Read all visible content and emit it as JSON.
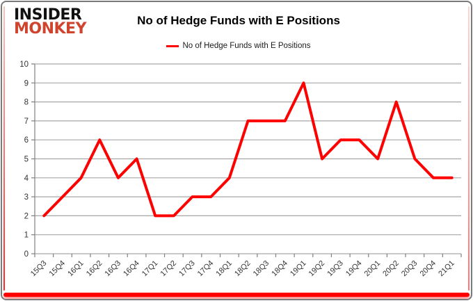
{
  "brand": {
    "line1": "INSIDER",
    "line2": "MONKEY",
    "accent_color": "#d0442e"
  },
  "chart_data": {
    "type": "line",
    "title": "No of Hedge Funds with E Positions",
    "legend": "No of Hedge Funds with E Positions",
    "legend_position": "top",
    "categories": [
      "15Q3",
      "15Q4",
      "16Q1",
      "16Q2",
      "16Q3",
      "16Q4",
      "17Q1",
      "17Q2",
      "17Q3",
      "17Q4",
      "18Q1",
      "18Q2",
      "18Q3",
      "18Q4",
      "19Q1",
      "19Q2",
      "19Q3",
      "19Q4",
      "20Q1",
      "20Q2",
      "20Q3",
      "20Q4",
      "21Q1"
    ],
    "values": [
      2,
      3,
      4,
      6,
      4,
      5,
      2,
      2,
      3,
      3,
      4,
      7,
      7,
      7,
      9,
      5,
      6,
      6,
      5,
      8,
      5,
      4,
      4
    ],
    "ylim": [
      0,
      10
    ],
    "ytick_step": 1,
    "grid": true,
    "line_color": "#ff0000",
    "grid_color": "#a6a6a6",
    "axis_color": "#808080",
    "label_color": "#333333",
    "frame_accent_color": "#ff0000"
  }
}
